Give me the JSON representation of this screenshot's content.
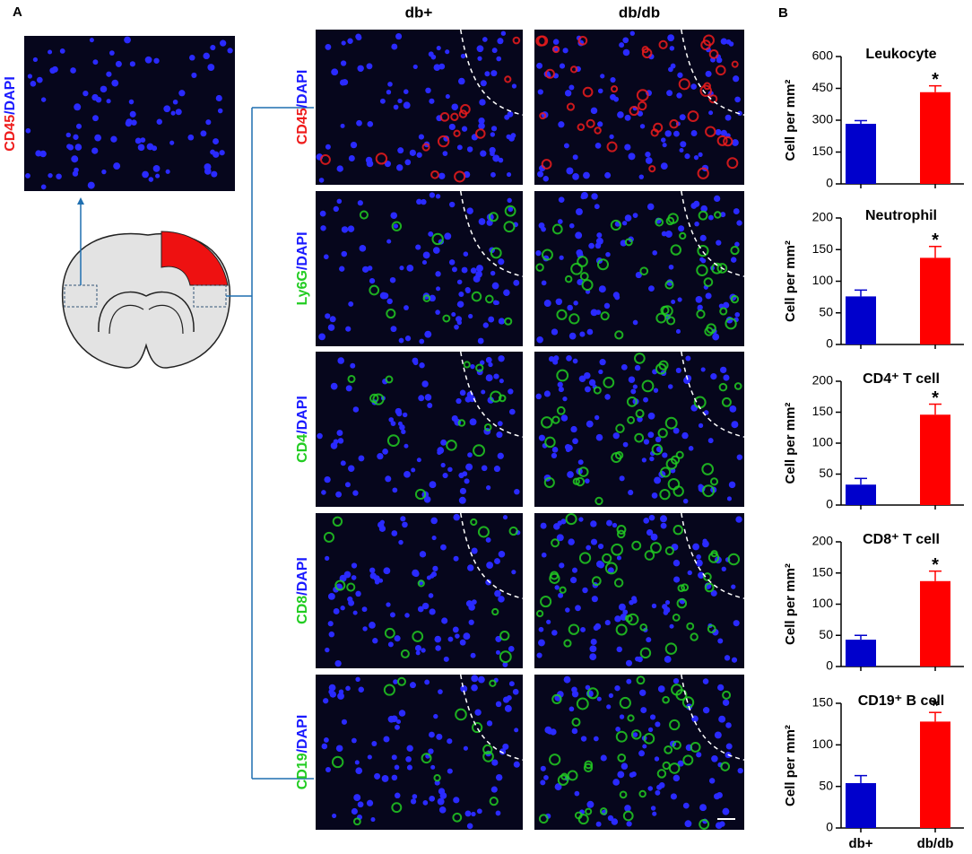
{
  "panel_labels": [
    "A",
    "B"
  ],
  "column_headers": [
    "db+",
    "db/db"
  ],
  "overview_label": {
    "marker": "CD45",
    "counterstain": "/DAPI",
    "marker_color": "#ee1c1c"
  },
  "rows": [
    {
      "marker": "CD45",
      "counterstain": "/DAPI",
      "marker_color": "#ee1c1c"
    },
    {
      "marker": "Ly6G",
      "counterstain": "/DAPI",
      "marker_color": "#22cc22"
    },
    {
      "marker": "CD4",
      "counterstain": "/DAPI",
      "marker_color": "#22cc22"
    },
    {
      "marker": "CD8",
      "counterstain": "/DAPI",
      "marker_color": "#22cc22"
    },
    {
      "marker": "CD19",
      "counterstain": "/DAPI",
      "marker_color": "#22cc22"
    }
  ],
  "chart_data": [
    {
      "type": "bar",
      "title": "Leukocyte",
      "y_label": "Cell per mm²",
      "values": [
        283,
        432
      ],
      "errors": [
        15,
        30
      ],
      "colors": [
        "#0000cc",
        "#ff0000"
      ],
      "annotation": "*",
      "ylim": [
        0,
        600
      ],
      "yticks": [
        0,
        150,
        300,
        450,
        600
      ]
    },
    {
      "type": "bar",
      "title": "Neutrophil",
      "y_label": "Cell per mm²",
      "values": [
        76,
        137
      ],
      "errors": [
        10,
        18
      ],
      "colors": [
        "#0000cc",
        "#ff0000"
      ],
      "annotation": "*",
      "ylim": [
        0,
        200
      ],
      "yticks": [
        0,
        50,
        100,
        150,
        200
      ]
    },
    {
      "type": "bar",
      "title": "CD4⁺ T cell",
      "y_label": "Cell per mm²",
      "values": [
        33,
        146
      ],
      "errors": [
        10,
        17
      ],
      "colors": [
        "#0000cc",
        "#ff0000"
      ],
      "annotation": "*",
      "ylim": [
        0,
        200
      ],
      "yticks": [
        0,
        50,
        100,
        150,
        200
      ]
    },
    {
      "type": "bar",
      "title": "CD8⁺ T cell",
      "y_label": "Cell per mm²",
      "values": [
        43,
        137
      ],
      "errors": [
        7,
        16
      ],
      "colors": [
        "#0000cc",
        "#ff0000"
      ],
      "annotation": "*",
      "ylim": [
        0,
        200
      ],
      "yticks": [
        0,
        50,
        100,
        150,
        200
      ]
    },
    {
      "type": "bar",
      "title": "CD19⁺ B cell",
      "y_label": "Cell per mm²",
      "categories": [
        "db+",
        "db/db"
      ],
      "values": [
        54,
        128
      ],
      "errors": [
        9,
        11
      ],
      "colors": [
        "#0000cc",
        "#ff0000"
      ],
      "annotation": "*",
      "ylim": [
        0,
        150
      ],
      "yticks": [
        0,
        50,
        100,
        150
      ]
    }
  ]
}
